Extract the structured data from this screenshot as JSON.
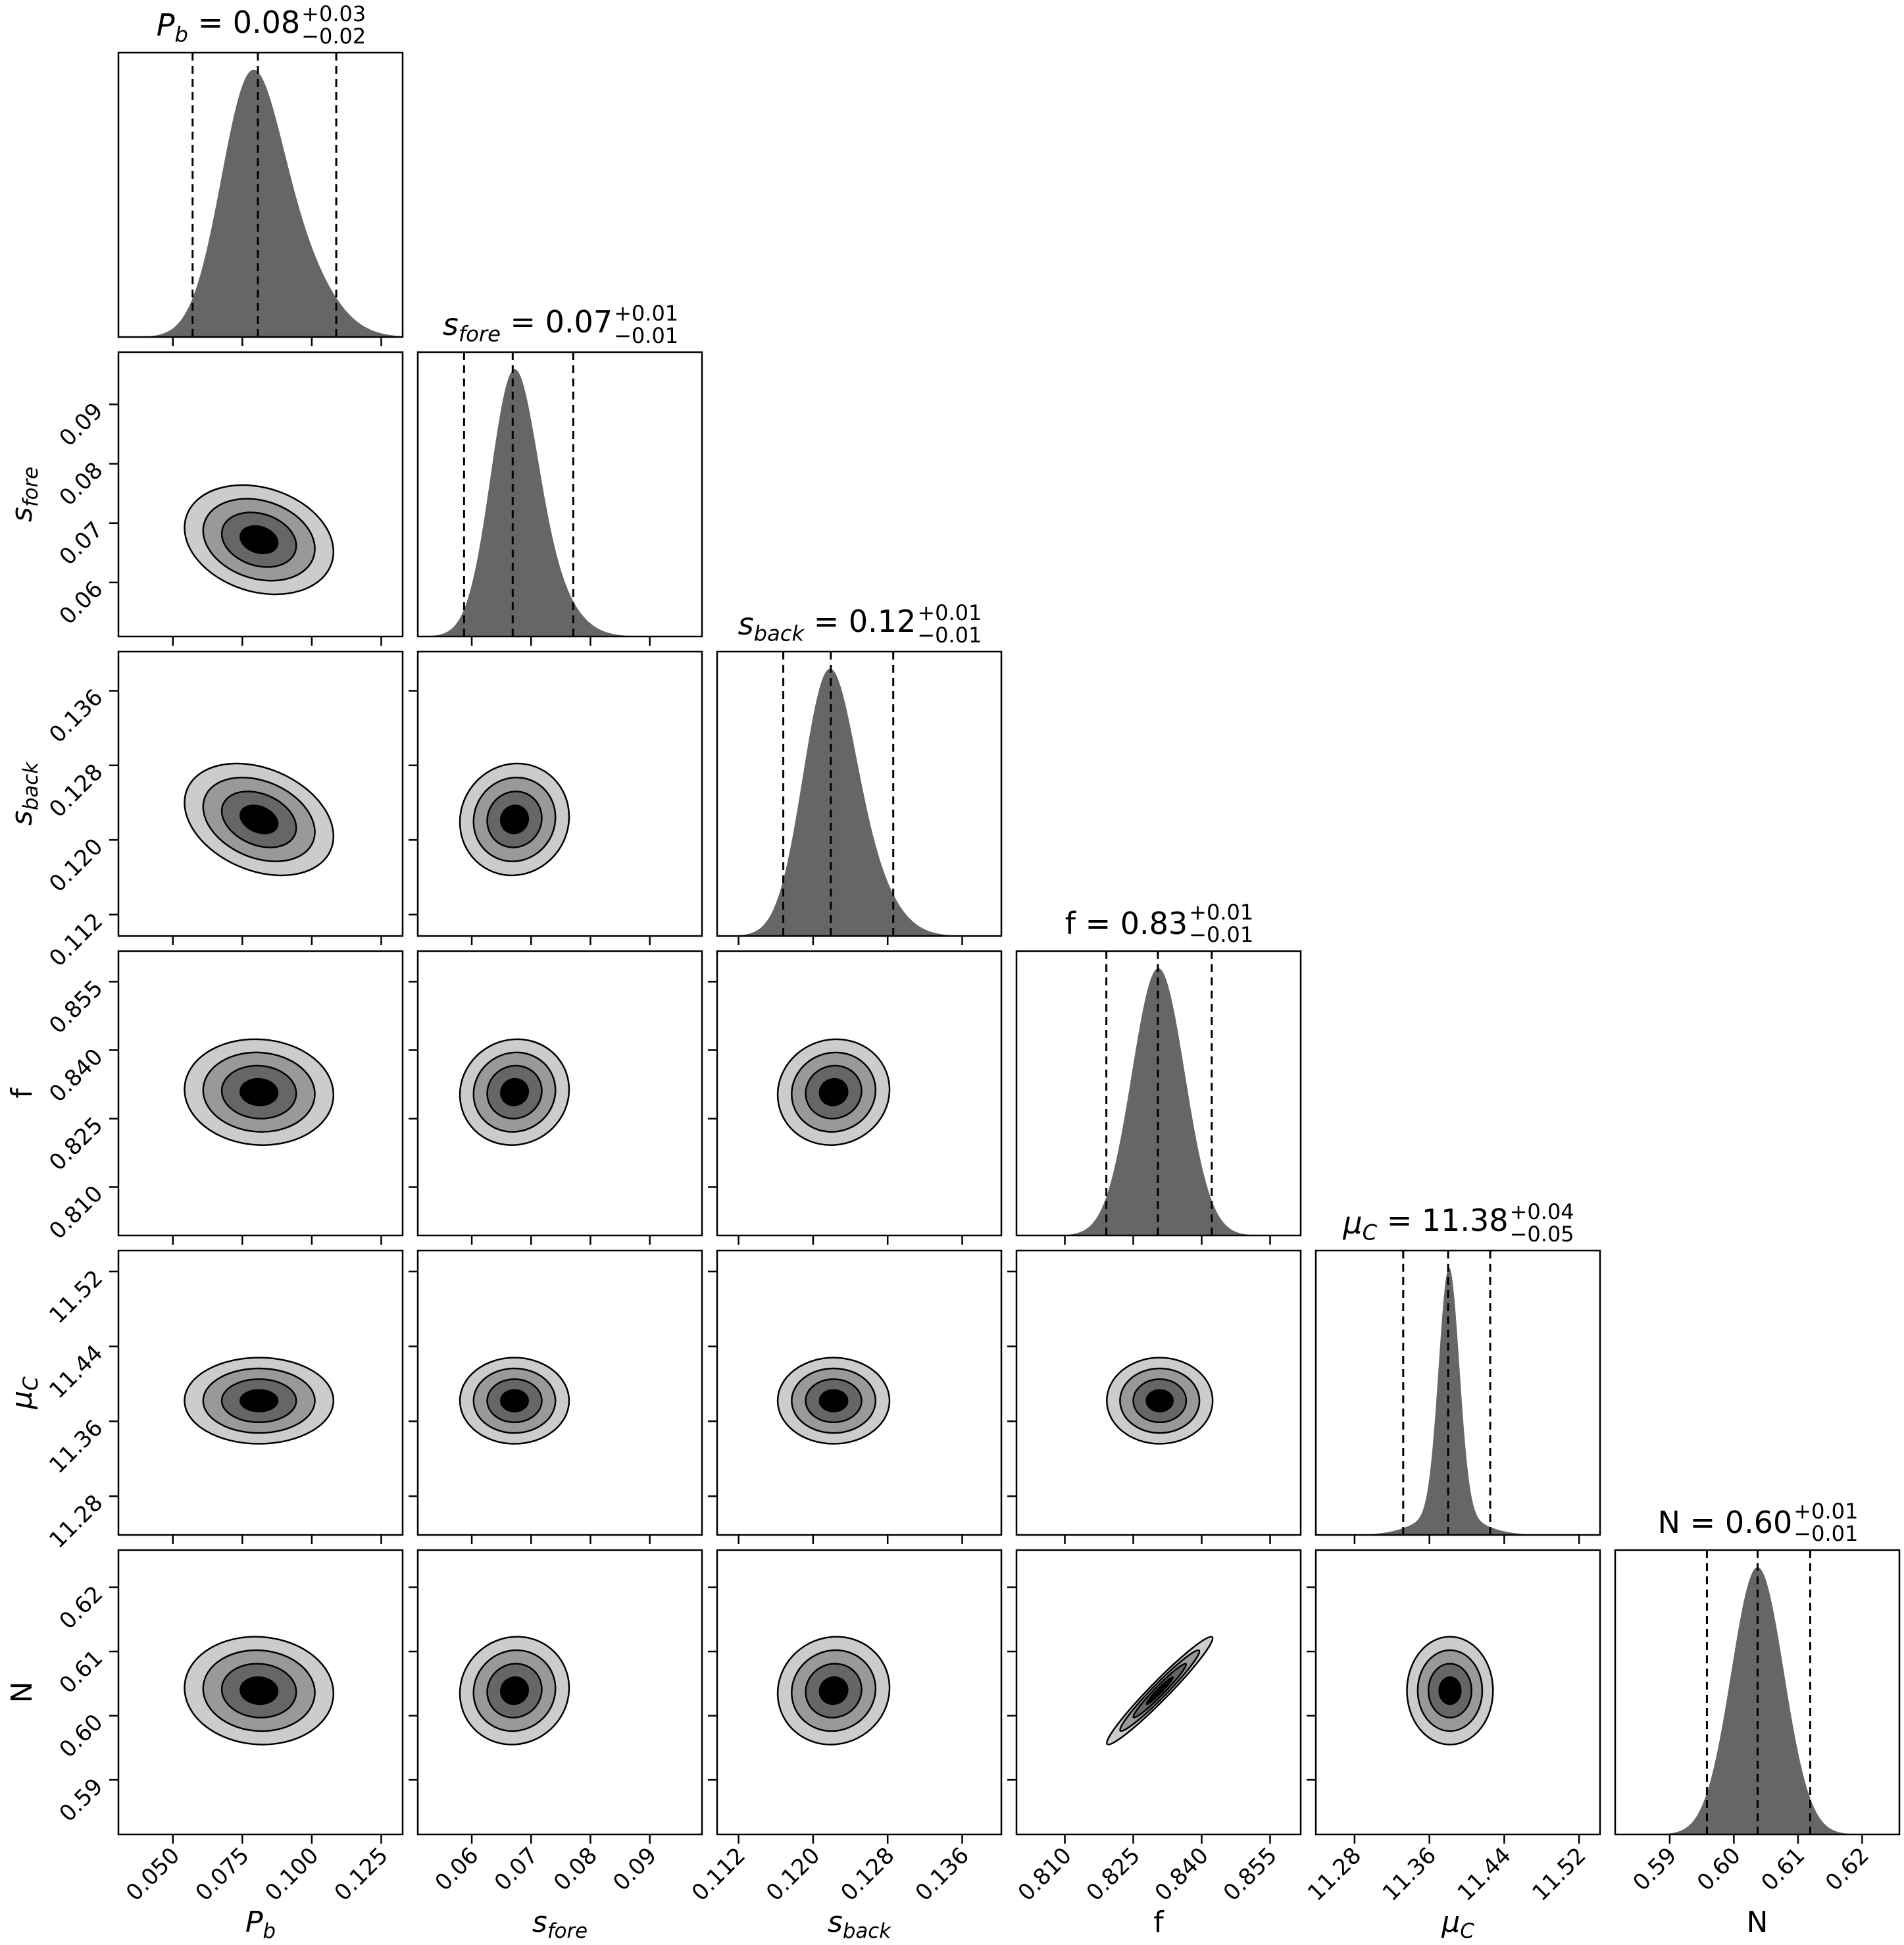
{
  "chart_data": {
    "type": "corner",
    "title": "",
    "contour_levels_sigma": [
      0.5,
      1.0,
      1.5,
      2.0
    ],
    "colors": {
      "histogram": "#666666",
      "contour_fills": [
        "#cccccc",
        "#999999",
        "#666666",
        "#000000"
      ],
      "contour_line": "#000000",
      "frame": "#000000"
    },
    "parameters": [
      {
        "key": "Pb",
        "label": {
          "base": "P",
          "sub": "b",
          "italic": true
        },
        "title": {
          "eq": " = ",
          "value": "0.08",
          "plus": "+0.03",
          "minus": "−0.02"
        },
        "range": [
          0.0304,
          0.1327
        ],
        "ticks": [
          0.05,
          0.075,
          0.1,
          0.125
        ],
        "tick_labels": [
          "0.050",
          "0.075",
          "0.100",
          "0.125"
        ],
        "quantiles": [
          0.0571,
          0.0806,
          0.1088
        ],
        "center": 0.081,
        "sigma": 0.0134,
        "components": [
          [
            0.65,
            0.077,
            0.0105
          ],
          [
            0.35,
            0.091,
            0.0135
          ]
        ]
      },
      {
        "key": "sfore",
        "label": {
          "base": "s",
          "sub": "fore",
          "italic": true
        },
        "title": {
          "eq": " = ",
          "value": "0.07",
          "plus": "+0.01",
          "minus": "−0.01"
        },
        "range": [
          0.0509,
          0.0988
        ],
        "ticks": [
          0.06,
          0.07,
          0.08,
          0.09
        ],
        "tick_labels": [
          "0.06",
          "0.07",
          "0.08",
          "0.09"
        ],
        "quantiles": [
          0.0587,
          0.0669,
          0.0771
        ],
        "center": 0.0672,
        "sigma": 0.0046,
        "components": [
          [
            0.7,
            0.0668,
            0.0038
          ],
          [
            0.3,
            0.0705,
            0.0052
          ]
        ]
      },
      {
        "key": "sback",
        "label": {
          "base": "s",
          "sub": "back",
          "italic": true
        },
        "title": {
          "eq": " = ",
          "value": "0.12",
          "plus": "+0.01",
          "minus": "−0.01"
        },
        "range": [
          0.1097,
          0.1402
        ],
        "ticks": [
          0.112,
          0.12,
          0.128,
          0.136
        ],
        "tick_labels": [
          "0.112",
          "0.120",
          "0.128",
          "0.136"
        ],
        "quantiles": [
          0.1168,
          0.1219,
          0.1286
        ],
        "center": 0.1222,
        "sigma": 0.003,
        "components": [
          [
            0.7,
            0.1214,
            0.0027
          ],
          [
            0.3,
            0.1245,
            0.0034
          ]
        ]
      },
      {
        "key": "f",
        "label": {
          "base": "f",
          "sub": "",
          "italic": false
        },
        "title": {
          "eq": " = ",
          "value": "0.83",
          "plus": "+0.01",
          "minus": "−0.01"
        },
        "range": [
          0.7994,
          0.8617
        ],
        "ticks": [
          0.81,
          0.825,
          0.84,
          0.855
        ],
        "tick_labels": [
          "0.810",
          "0.825",
          "0.840",
          "0.855"
        ],
        "quantiles": [
          0.8191,
          0.8304,
          0.8422
        ],
        "center": 0.8308,
        "sigma": 0.0058,
        "components": [
          [
            1.0,
            0.8305,
            0.0058
          ]
        ]
      },
      {
        "key": "muC",
        "label": {
          "base": "μ",
          "sub": "C",
          "italic": true
        },
        "title": {
          "eq": " = ",
          "value": "11.38",
          "plus": "+0.04",
          "minus": "−0.05"
        },
        "range": [
          11.2386,
          11.5424
        ],
        "ticks": [
          11.28,
          11.36,
          11.44,
          11.52
        ],
        "tick_labels": [
          "11.28",
          "11.36",
          "11.44",
          "11.52"
        ],
        "quantiles": [
          11.332,
          11.38,
          11.425
        ],
        "center": 11.382,
        "sigma": 0.023,
        "components": [
          [
            0.8,
            11.381,
            0.011
          ],
          [
            0.2,
            11.38,
            0.032
          ]
        ]
      },
      {
        "key": "N",
        "label": {
          "base": "N",
          "sub": "",
          "italic": false
        },
        "title": {
          "eq": " = ",
          "value": "0.60",
          "plus": "+0.01",
          "minus": "−0.01"
        },
        "range": [
          0.5815,
          0.6258
        ],
        "ticks": [
          0.59,
          0.6,
          0.61,
          0.62
        ],
        "tick_labels": [
          "0.59",
          "0.60",
          "0.61",
          "0.62"
        ],
        "quantiles": [
          0.5958,
          0.6037,
          0.6119
        ],
        "center": 0.6039,
        "sigma": 0.0042,
        "components": [
          [
            1.0,
            0.6037,
            0.0041
          ]
        ]
      }
    ],
    "correlations": [
      [
        "Pb",
        "sfore",
        -0.22
      ],
      [
        "Pb",
        "sback",
        -0.3
      ],
      [
        "Pb",
        "f",
        -0.05
      ],
      [
        "Pb",
        "muC",
        0.0
      ],
      [
        "Pb",
        "N",
        -0.05
      ],
      [
        "sfore",
        "sback",
        0.05
      ],
      [
        "sfore",
        "f",
        0.05
      ],
      [
        "sfore",
        "muC",
        0.0
      ],
      [
        "sfore",
        "N",
        0.05
      ],
      [
        "sback",
        "f",
        0.05
      ],
      [
        "sback",
        "muC",
        0.0
      ],
      [
        "sback",
        "N",
        0.05
      ],
      [
        "f",
        "muC",
        0.0
      ],
      [
        "f",
        "N",
        0.97
      ],
      [
        "muC",
        "N",
        0.0
      ]
    ]
  }
}
